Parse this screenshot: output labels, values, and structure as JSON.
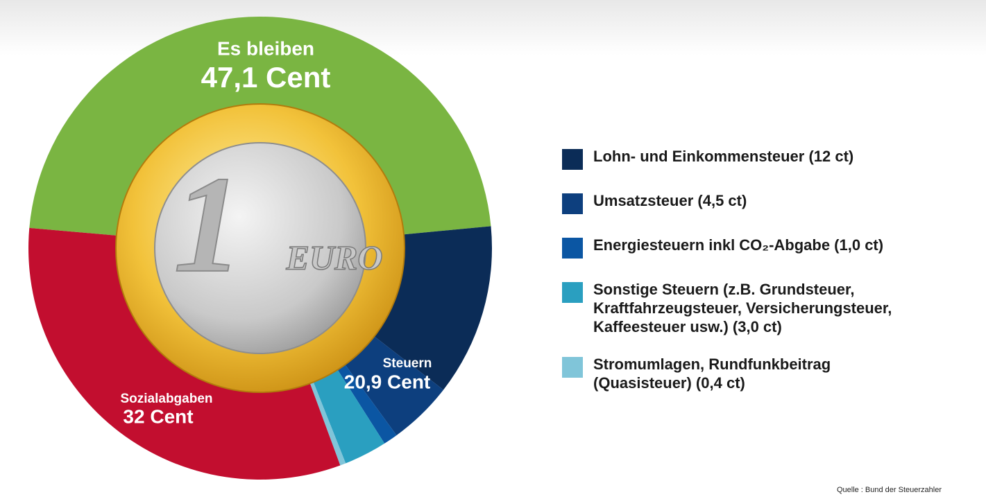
{
  "chart_data": {
    "type": "donut",
    "categories": [
      "Es bleiben",
      "Sozialabgaben",
      "Steuern"
    ],
    "values": [
      47.1,
      32,
      20.9
    ],
    "value_labels": [
      "47,1 Cent",
      "32 Cent",
      "20,9 Cent"
    ],
    "colors": [
      "#7ab542",
      "#c20e2f",
      null
    ],
    "tax_breakdown": {
      "labels": [
        [
          "Lohn- und Einkommensteuer (12 ct)"
        ],
        [
          "Umsatzsteuer (4,5 ct)"
        ],
        [
          "Energiesteuern inkl CO₂-Abgabe (1,0 ct)"
        ],
        [
          "Sonstige Steuern (z.B. Grundsteuer,",
          "Kraftfahrzeugsteuer, Versicherungsteuer,",
          "Kaffeesteuer usw.) (3,0 ct)"
        ],
        [
          "Stromumlagen, Rundfunkbeitrag",
          "(Quasisteuer) (0,4 ct)"
        ]
      ],
      "values": [
        12,
        4.5,
        1.0,
        3.0,
        0.4
      ],
      "colors": [
        "#0b2c57",
        "#0d3f7e",
        "#0b56a3",
        "#2a9fc0",
        "#80c5d9"
      ]
    },
    "coin": {
      "numeral": "1",
      "text": "EURO"
    },
    "source": "Quelle : Bund der Steuerzahler"
  }
}
